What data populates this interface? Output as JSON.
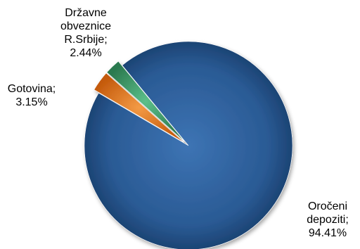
{
  "chart_data": {
    "type": "pie",
    "title": "",
    "slices": [
      {
        "label_lines": [
          "Oročeni",
          "depoziti;",
          "94.41%"
        ],
        "name": "Oročeni depoziti",
        "value": 94.41,
        "color": "#2a5a94"
      },
      {
        "label_lines": [
          "Gotovina;",
          "3.15%"
        ],
        "name": "Gotovina",
        "value": 3.15,
        "color": "#e8731a"
      },
      {
        "label_lines": [
          "Državne",
          "obveznice",
          "R.Srbije;",
          "2.44%"
        ],
        "name": "Državne obveznice R.Srbije",
        "value": 2.44,
        "color": "#3f9b6a"
      }
    ]
  }
}
